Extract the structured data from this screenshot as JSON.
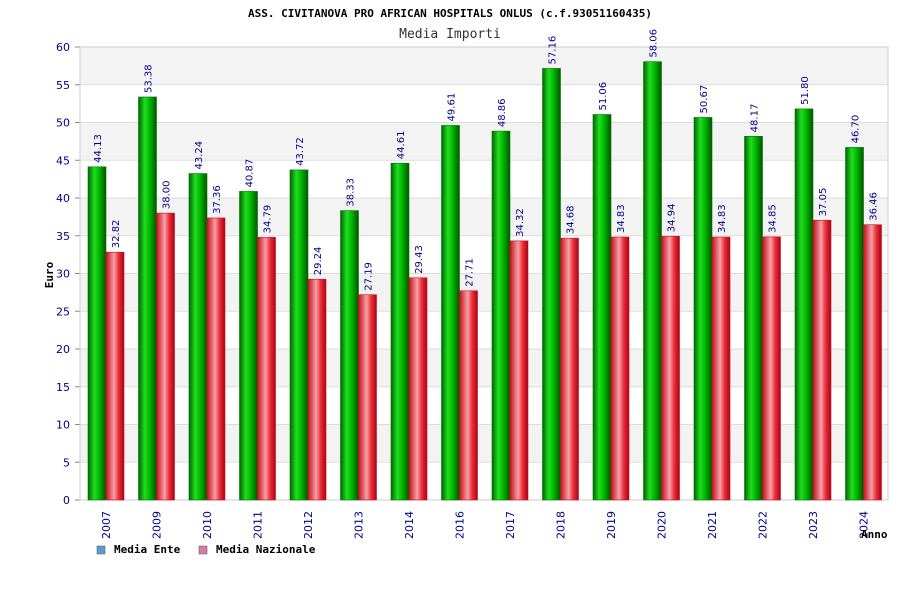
{
  "chart_data": {
    "type": "bar",
    "title": "ASS. CIVITANOVA PRO AFRICAN HOSPITALS ONLUS (c.f.93051160435)",
    "subtitle": "Media Importi",
    "xlabel": "Anno",
    "ylabel": "Euro",
    "ylim": [
      0,
      60
    ],
    "ytick_step": 5,
    "grid": true,
    "legend_position": "bottom-left",
    "categories": [
      "2007",
      "2009",
      "2010",
      "2011",
      "2012",
      "2013",
      "2014",
      "2016",
      "2017",
      "2018",
      "2019",
      "2020",
      "2021",
      "2022",
      "2023",
      "2024"
    ],
    "series": [
      {
        "name": "Media Ente",
        "color": "#00aa00",
        "legend_color": "#5b9bd5",
        "values": [
          44.13,
          53.38,
          43.24,
          40.87,
          43.72,
          38.33,
          44.61,
          49.61,
          48.86,
          57.16,
          51.06,
          58.06,
          50.67,
          48.17,
          51.8,
          46.7
        ],
        "labels": [
          "44.13",
          "53.38",
          "43.24",
          "40.87",
          "43.72",
          "38.33",
          "44.61",
          "49.61",
          "48.86",
          "57.16",
          "51.06",
          "58.06",
          "50.67",
          "48.17",
          "51.80",
          "46.70"
        ]
      },
      {
        "name": "Media Nazionale",
        "color": "#e8202a",
        "legend_color": "#d97aa8",
        "values": [
          32.82,
          38.0,
          37.36,
          34.79,
          29.24,
          27.19,
          29.43,
          27.71,
          34.32,
          34.68,
          34.83,
          34.94,
          34.83,
          34.85,
          37.05,
          36.46
        ],
        "labels": [
          "32.82",
          "38.00",
          "37.36",
          "34.79",
          "29.24",
          "27.19",
          "29.43",
          "27.71",
          "34.32",
          "34.68",
          "34.83",
          "34.94",
          "34.83",
          "34.85",
          "37.05",
          "36.46"
        ]
      }
    ]
  }
}
